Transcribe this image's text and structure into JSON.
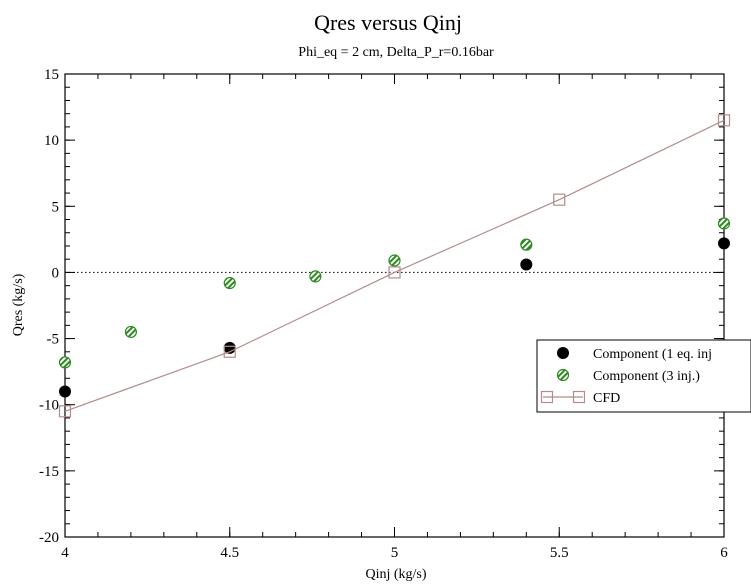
{
  "chart_data": {
    "type": "scatter",
    "title": "Qres versus Qinj",
    "subtitle": "Phi_eq = 2 cm, Delta_P_r=0.16bar",
    "xlabel": "Qinj (kg/s)",
    "ylabel": "Qres (kg/s)",
    "xlim": [
      4,
      6
    ],
    "ylim": [
      -20,
      15
    ],
    "x_ticks": [
      "4",
      "4.5",
      "5",
      "5.5",
      "6"
    ],
    "y_ticks": [
      "15",
      "10",
      "5",
      "0",
      "-5",
      "-10",
      "-15",
      "-20"
    ],
    "grid": false,
    "reference_line": {
      "y": 0,
      "style": "dotted"
    },
    "legend_position": "right",
    "series": [
      {
        "name": "Component (1 eq. inj",
        "marker": "filled-circle",
        "color": "#000000",
        "x": [
          4.0,
          4.5,
          5.4,
          6.0
        ],
        "y": [
          -9.0,
          -5.7,
          0.6,
          2.2
        ]
      },
      {
        "name": "Component (3 inj.)",
        "marker": "hatched-circle",
        "color": "#2a8a1e",
        "x": [
          4.0,
          4.2,
          4.5,
          4.76,
          5.0,
          5.4,
          6.0
        ],
        "y": [
          -6.8,
          -4.5,
          -0.8,
          -0.3,
          0.9,
          2.1,
          3.7
        ]
      },
      {
        "name": "CFD",
        "marker": "open-square-line",
        "color": "#b48c8c",
        "x": [
          4.0,
          4.5,
          5.0,
          5.5,
          6.0
        ],
        "y": [
          -10.5,
          -6.0,
          0.0,
          5.5,
          11.5
        ]
      }
    ]
  }
}
